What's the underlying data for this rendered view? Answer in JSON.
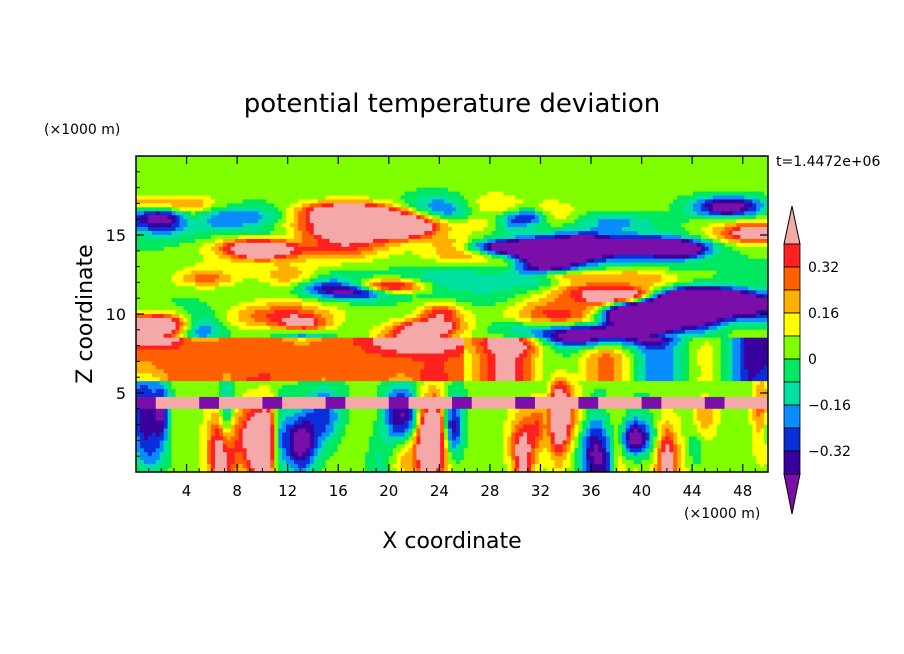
{
  "chart_data": {
    "type": "heatmap",
    "title": "potential temperature deviation",
    "xlabel": "X coordinate",
    "ylabel": "Z coordinate",
    "x_units": "(×1000 m)",
    "y_units": "(×1000 m)",
    "time_label": "t=1.4472e+06",
    "xlim": [
      0,
      50
    ],
    "ylim": [
      0,
      20
    ],
    "x_ticks": [
      "4",
      "8",
      "12",
      "16",
      "20",
      "24",
      "28",
      "32",
      "36",
      "40",
      "44",
      "48"
    ],
    "y_ticks": [
      "5",
      "10",
      "15"
    ],
    "colorbar": {
      "levels": [
        -0.4,
        -0.32,
        -0.24,
        -0.16,
        -0.08,
        0,
        0.08,
        0.16,
        0.24,
        0.32,
        0.4
      ],
      "labels": [
        "0.32",
        "0.16",
        "0",
        "-0.16",
        "-0.32"
      ],
      "colors": [
        "#7a0ea8",
        "#3a009e",
        "#0a2ed8",
        "#0a8cff",
        "#00e0a0",
        "#00e860",
        "#80ff00",
        "#ffff00",
        "#ffb000",
        "#ff6000",
        "#ff2020",
        "#f4a8a8"
      ],
      "over_color": "#f4a8a8",
      "under_color": "#7a0ea8"
    },
    "bands": [
      {
        "z": [
          0,
          4.0
        ],
        "value": 0.05
      },
      {
        "z": [
          4.0,
          4.8
        ],
        "value": 0.45
      },
      {
        "z": [
          4.8,
          5.8
        ],
        "value": 0.02
      },
      {
        "z": [
          5.8,
          8.5
        ],
        "value": 0.3
      },
      {
        "z": [
          8.5,
          16.5
        ],
        "value": 0.0
      },
      {
        "z": [
          16.5,
          20
        ],
        "value": 0.03
      }
    ]
  }
}
